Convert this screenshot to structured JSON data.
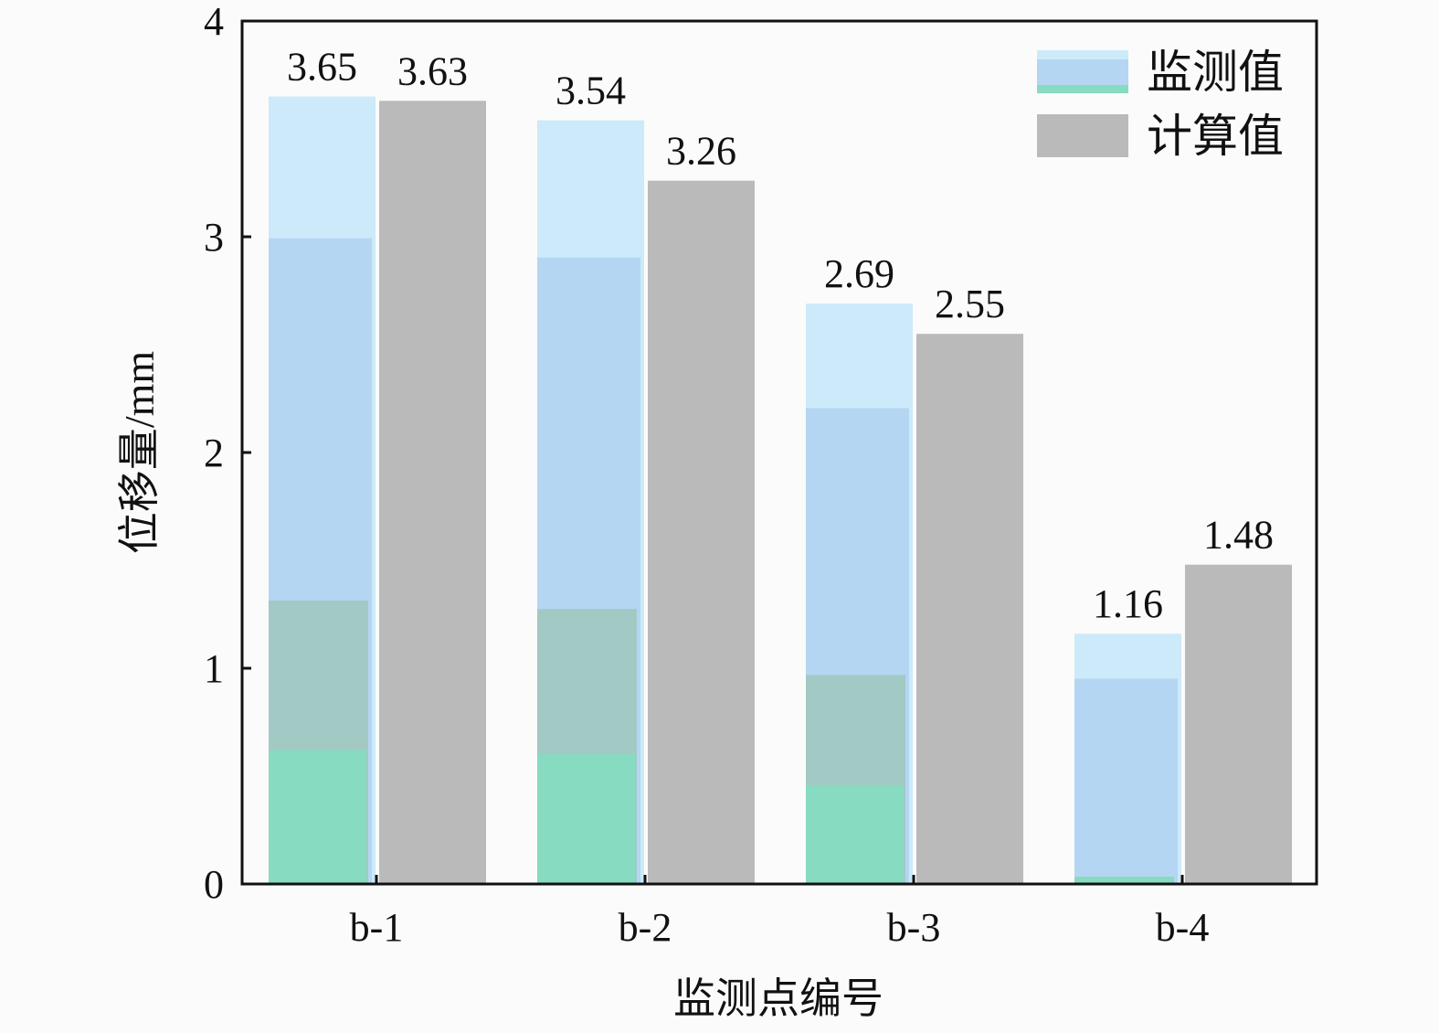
{
  "chart_data": {
    "type": "bar",
    "title": "",
    "xlabel": "监测点编号",
    "ylabel": "位移量/mm",
    "categories": [
      "b-1",
      "b-2",
      "b-3",
      "b-4"
    ],
    "series": [
      {
        "name": "监测值",
        "values": [
          3.65,
          3.54,
          2.69,
          1.16
        ]
      },
      {
        "name": "计算值",
        "values": [
          3.63,
          3.26,
          2.55,
          1.48
        ]
      }
    ],
    "data_labels": [
      [
        "3.65",
        "3.54",
        "2.69",
        "1.16"
      ],
      [
        "3.63",
        "3.26",
        "2.55",
        "1.48"
      ]
    ],
    "ylim": [
      0,
      4
    ],
    "yticks": [
      "0",
      "1",
      "2",
      "3",
      "4"
    ],
    "grid": false,
    "legend_position": "top-right",
    "colors": {
      "monitored_top": "#cceafa",
      "monitored_mid": "#b4d6f2",
      "monitored_lower": "#a2c9c4",
      "monitored_base": "#86dbc0",
      "computed": "#bababa",
      "axis": "#111111",
      "background": "#fbfbfb"
    }
  }
}
